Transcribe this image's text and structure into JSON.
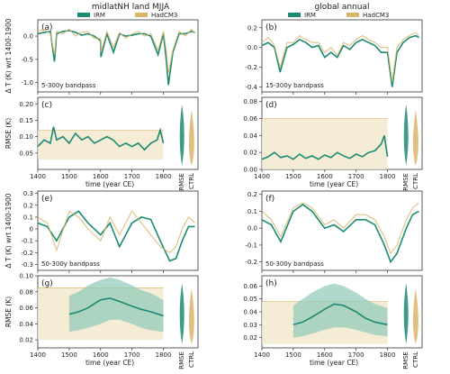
{
  "colors": {
    "irm": "#1b8a72",
    "hadcm3": "#d9b56a",
    "hadcm3_fill": "#f3e7cc",
    "irm_fill": "#8fc9b8"
  },
  "headers": {
    "left": "midlatNH land MJJA",
    "right": "global annual"
  },
  "legend": {
    "irm": "IRM",
    "hadcm3": "HadCM3"
  },
  "chart_data": [
    {
      "panel": "(a)",
      "type": "line",
      "note": "5-300y bandpass",
      "ylabel": "Δ T (K) wrt 1400-1900",
      "xlim": [
        1400,
        1900
      ],
      "ylim": [
        -1.2,
        0.35
      ],
      "yticks": [
        "0.0",
        "-0.5",
        "-1.0"
      ],
      "ytick_values": [
        0,
        -0.5,
        -1.0
      ],
      "xticks": [],
      "xtick_values": [
        1400,
        1500,
        1600,
        1700,
        1800
      ],
      "series": [
        {
          "name": "IRM",
          "color": "#1b8a72",
          "x": [
            1400,
            1420,
            1440,
            1453,
            1460,
            1480,
            1500,
            1520,
            1540,
            1560,
            1580,
            1600,
            1601,
            1620,
            1641,
            1660,
            1680,
            1700,
            1720,
            1740,
            1760,
            1783,
            1800,
            1809,
            1816,
            1830,
            1850,
            1870,
            1890,
            1900
          ],
          "y": [
            0.05,
            0.08,
            0.1,
            -0.55,
            0.05,
            0.1,
            0.12,
            0.08,
            0.02,
            0.05,
            0.0,
            -0.1,
            -0.45,
            0.05,
            -0.35,
            0.05,
            0.0,
            0.02,
            0.05,
            0.05,
            0.0,
            -0.4,
            0.05,
            -0.5,
            -1.05,
            -0.35,
            0.05,
            0.05,
            0.1,
            0.08
          ]
        },
        {
          "name": "HadCM3",
          "color": "#d9b56a",
          "x": [
            1400,
            1420,
            1440,
            1453,
            1460,
            1480,
            1500,
            1520,
            1540,
            1560,
            1580,
            1600,
            1601,
            1620,
            1641,
            1660,
            1680,
            1700,
            1720,
            1740,
            1760,
            1783,
            1800,
            1809,
            1816,
            1830,
            1850,
            1870,
            1890,
            1900
          ],
          "y": [
            0.1,
            0.15,
            0.05,
            -0.4,
            0.1,
            0.05,
            0.15,
            0.0,
            0.08,
            0.1,
            -0.05,
            -0.05,
            -0.35,
            0.1,
            -0.25,
            0.08,
            -0.05,
            0.05,
            0.1,
            0.0,
            0.05,
            -0.3,
            0.1,
            -0.3,
            -0.8,
            -0.3,
            0.1,
            0.0,
            0.15,
            0.05
          ]
        }
      ]
    },
    {
      "panel": "(b)",
      "type": "line",
      "note": "15-300y bandpass",
      "xlim": [
        1400,
        1900
      ],
      "ylim": [
        -0.45,
        0.28
      ],
      "yticks": [
        "0.2",
        "0.0",
        "-0.2",
        "-0.4"
      ],
      "ytick_values": [
        0.2,
        0,
        -0.2,
        -0.4
      ],
      "xticks": [],
      "xtick_values": [
        1400,
        1500,
        1600,
        1700,
        1800
      ],
      "series": [
        {
          "name": "IRM",
          "color": "#1b8a72",
          "x": [
            1400,
            1420,
            1440,
            1458,
            1480,
            1500,
            1520,
            1540,
            1560,
            1580,
            1600,
            1620,
            1640,
            1660,
            1680,
            1700,
            1720,
            1740,
            1760,
            1780,
            1800,
            1815,
            1830,
            1850,
            1870,
            1890,
            1900
          ],
          "y": [
            0.02,
            0.05,
            0.0,
            -0.25,
            0.0,
            0.03,
            0.08,
            0.05,
            0.0,
            0.02,
            -0.1,
            -0.05,
            -0.1,
            0.02,
            -0.02,
            0.05,
            0.08,
            0.05,
            0.02,
            -0.05,
            -0.05,
            -0.4,
            -0.05,
            0.05,
            0.1,
            0.12,
            0.1
          ]
        },
        {
          "name": "HadCM3",
          "color": "#d9b56a",
          "x": [
            1400,
            1420,
            1440,
            1458,
            1480,
            1500,
            1520,
            1540,
            1560,
            1580,
            1600,
            1620,
            1640,
            1660,
            1680,
            1700,
            1720,
            1740,
            1760,
            1780,
            1800,
            1815,
            1830,
            1850,
            1870,
            1890,
            1900
          ],
          "y": [
            0.05,
            0.1,
            0.02,
            -0.2,
            0.05,
            0.05,
            0.12,
            0.08,
            0.05,
            0.05,
            -0.05,
            0.0,
            -0.08,
            0.05,
            0.02,
            0.08,
            0.12,
            0.08,
            0.05,
            0.0,
            0.0,
            -0.35,
            0.0,
            0.08,
            0.12,
            0.15,
            0.12
          ]
        }
      ]
    },
    {
      "panel": "(c)",
      "type": "line",
      "ylabel": "RMSE (K)",
      "xlim": [
        1400,
        1900
      ],
      "ylim": [
        0.0,
        0.22
      ],
      "yticks": [
        "0.20",
        "0.15",
        "0.10",
        "0.05"
      ],
      "ytick_values": [
        0.2,
        0.15,
        0.1,
        0.05
      ],
      "xticks": [
        "1400",
        "1500",
        "1600",
        "1700",
        "1800"
      ],
      "xtick_values": [
        1400,
        1500,
        1600,
        1700,
        1800
      ],
      "xlabel": "time (year CE)",
      "hadcm3_band": [
        0.03,
        0.12
      ],
      "series": [
        {
          "name": "IRM",
          "color": "#1b8a72",
          "x": [
            1400,
            1420,
            1440,
            1450,
            1460,
            1480,
            1500,
            1520,
            1540,
            1560,
            1580,
            1600,
            1620,
            1640,
            1660,
            1680,
            1700,
            1720,
            1740,
            1760,
            1780,
            1790,
            1800
          ],
          "y": [
            0.07,
            0.09,
            0.08,
            0.13,
            0.09,
            0.1,
            0.08,
            0.11,
            0.09,
            0.1,
            0.08,
            0.09,
            0.1,
            0.09,
            0.07,
            0.08,
            0.07,
            0.08,
            0.06,
            0.08,
            0.09,
            0.12,
            0.08
          ]
        }
      ],
      "violins": [
        "RMSE",
        "CTRL"
      ]
    },
    {
      "panel": "(d)",
      "type": "line",
      "xlim": [
        1400,
        1900
      ],
      "ylim": [
        0.0,
        0.085
      ],
      "yticks": [
        "0.08",
        "0.06",
        "0.04",
        "0.02",
        "0.00"
      ],
      "ytick_values": [
        0.08,
        0.06,
        0.04,
        0.02,
        0.0
      ],
      "xticks": [
        "1400",
        "1500",
        "1600",
        "1700",
        "1800"
      ],
      "xtick_values": [
        1400,
        1500,
        1600,
        1700,
        1800
      ],
      "xlabel": "time (year CE)",
      "hadcm3_band": [
        0.0,
        0.06
      ],
      "series": [
        {
          "name": "IRM",
          "color": "#1b8a72",
          "x": [
            1400,
            1420,
            1440,
            1460,
            1480,
            1500,
            1520,
            1540,
            1560,
            1580,
            1600,
            1620,
            1640,
            1660,
            1680,
            1700,
            1720,
            1740,
            1760,
            1780,
            1790,
            1800
          ],
          "y": [
            0.012,
            0.015,
            0.02,
            0.014,
            0.016,
            0.012,
            0.018,
            0.013,
            0.016,
            0.012,
            0.017,
            0.014,
            0.02,
            0.016,
            0.013,
            0.018,
            0.015,
            0.02,
            0.022,
            0.03,
            0.04,
            0.015
          ]
        }
      ],
      "violins": [
        "RMSE",
        "CTRL"
      ]
    },
    {
      "panel": "(e)",
      "type": "line",
      "note": "50-300y bandpass",
      "ylabel": "Δ T (K) wrt 1400-1900",
      "xlim": [
        1400,
        1900
      ],
      "ylim": [
        -0.35,
        0.32
      ],
      "yticks": [
        "0.3",
        "0.2",
        "0.1",
        "0",
        "-0.1",
        "-0.2",
        "-0.3"
      ],
      "ytick_values": [
        0.3,
        0.2,
        0.1,
        0,
        -0.1,
        -0.2,
        -0.3
      ],
      "xticks": [],
      "xtick_values": [
        1400,
        1500,
        1600,
        1700,
        1800
      ],
      "series": [
        {
          "name": "IRM",
          "color": "#1b8a72",
          "x": [
            1400,
            1430,
            1460,
            1500,
            1530,
            1560,
            1600,
            1630,
            1660,
            1700,
            1730,
            1760,
            1790,
            1820,
            1840,
            1860,
            1880,
            1900
          ],
          "y": [
            0.05,
            0.02,
            -0.1,
            0.1,
            0.15,
            0.05,
            -0.05,
            0.05,
            -0.15,
            0.05,
            0.1,
            0.08,
            -0.1,
            -0.27,
            -0.25,
            -0.1,
            0.02,
            0.02
          ]
        },
        {
          "name": "HadCM3",
          "color": "#d9b56a",
          "x": [
            1400,
            1430,
            1460,
            1500,
            1530,
            1560,
            1600,
            1630,
            1660,
            1700,
            1730,
            1760,
            1790,
            1820,
            1840,
            1860,
            1880,
            1900
          ],
          "y": [
            0.1,
            0.05,
            -0.18,
            0.15,
            0.1,
            0.0,
            -0.1,
            0.1,
            -0.05,
            0.15,
            0.05,
            -0.05,
            -0.15,
            -0.2,
            -0.15,
            0.0,
            0.1,
            0.05
          ]
        }
      ]
    },
    {
      "panel": "(f)",
      "type": "line",
      "note": "50-300y bandpass",
      "xlim": [
        1400,
        1900
      ],
      "ylim": [
        -0.25,
        0.22
      ],
      "yticks": [
        "0.2",
        "0.1",
        "0.0",
        "-0.1",
        "-0.2"
      ],
      "ytick_values": [
        0.2,
        0.1,
        0.0,
        -0.1,
        -0.2
      ],
      "xticks": [],
      "xtick_values": [
        1400,
        1500,
        1600,
        1700,
        1800
      ],
      "series": [
        {
          "name": "IRM",
          "color": "#1b8a72",
          "x": [
            1400,
            1430,
            1460,
            1500,
            1530,
            1560,
            1600,
            1630,
            1660,
            1700,
            1730,
            1760,
            1790,
            1810,
            1830,
            1860,
            1880,
            1900
          ],
          "y": [
            0.05,
            0.02,
            -0.08,
            0.1,
            0.14,
            0.1,
            0.0,
            0.02,
            -0.02,
            0.05,
            0.05,
            0.02,
            -0.1,
            -0.2,
            -0.15,
            0.0,
            0.08,
            0.1
          ]
        },
        {
          "name": "HadCM3",
          "color": "#d9b56a",
          "x": [
            1400,
            1430,
            1460,
            1500,
            1530,
            1560,
            1600,
            1630,
            1660,
            1700,
            1730,
            1760,
            1790,
            1810,
            1830,
            1860,
            1880,
            1900
          ],
          "y": [
            0.1,
            0.05,
            -0.05,
            0.12,
            0.15,
            0.12,
            0.02,
            0.05,
            0.0,
            0.08,
            0.08,
            0.05,
            -0.05,
            -0.15,
            -0.1,
            0.05,
            0.12,
            0.15
          ]
        }
      ]
    },
    {
      "panel": "(g)",
      "type": "area",
      "ylabel": "RMSE (K)",
      "xlim": [
        1400,
        1900
      ],
      "ylim": [
        0.01,
        0.1
      ],
      "yticks": [
        "0.10",
        "0.08",
        "0.06",
        "0.04",
        "0.02"
      ],
      "ytick_values": [
        0.1,
        0.08,
        0.06,
        0.04,
        0.02
      ],
      "xticks": [
        "1400",
        "1500",
        "1600",
        "1700",
        "1800"
      ],
      "xtick_values": [
        1400,
        1500,
        1600,
        1700,
        1800
      ],
      "xlabel": "time (year CE)",
      "hadcm3_band": [
        0.02,
        0.085
      ],
      "series": [
        {
          "name": "IRM",
          "color": "#1b8a72",
          "x": [
            1500,
            1530,
            1560,
            1600,
            1630,
            1660,
            1700,
            1730,
            1760,
            1800
          ],
          "y": [
            0.052,
            0.055,
            0.06,
            0.07,
            0.072,
            0.068,
            0.062,
            0.058,
            0.055,
            0.05
          ],
          "lower": [
            0.03,
            0.032,
            0.035,
            0.04,
            0.045,
            0.045,
            0.04,
            0.035,
            0.032,
            0.03
          ],
          "upper": [
            0.075,
            0.08,
            0.088,
            0.095,
            0.098,
            0.095,
            0.088,
            0.082,
            0.078,
            0.07
          ]
        }
      ],
      "violins": [
        "RMSE",
        "CTRL"
      ]
    },
    {
      "panel": "(h)",
      "type": "area",
      "xlim": [
        1400,
        1900
      ],
      "ylim": [
        0.012,
        0.068
      ],
      "yticks": [
        "0.06",
        "0.05",
        "0.04",
        "0.03",
        "0.02"
      ],
      "ytick_values": [
        0.06,
        0.05,
        0.04,
        0.03,
        0.02
      ],
      "xticks": [
        "1400",
        "1500",
        "1600",
        "1700",
        "1800"
      ],
      "xtick_values": [
        1400,
        1500,
        1600,
        1700,
        1800
      ],
      "xlabel": "time (year CE)",
      "hadcm3_band": [
        0.015,
        0.048
      ],
      "series": [
        {
          "name": "IRM",
          "color": "#1b8a72",
          "x": [
            1500,
            1530,
            1560,
            1600,
            1630,
            1660,
            1700,
            1730,
            1760,
            1800
          ],
          "y": [
            0.03,
            0.032,
            0.036,
            0.042,
            0.046,
            0.045,
            0.04,
            0.035,
            0.032,
            0.03
          ],
          "lower": [
            0.02,
            0.021,
            0.023,
            0.026,
            0.028,
            0.028,
            0.026,
            0.024,
            0.022,
            0.021
          ],
          "upper": [
            0.045,
            0.05,
            0.055,
            0.06,
            0.062,
            0.06,
            0.055,
            0.05,
            0.046,
            0.043
          ]
        }
      ],
      "violins": [
        "RMSE",
        "CTRL"
      ]
    }
  ]
}
